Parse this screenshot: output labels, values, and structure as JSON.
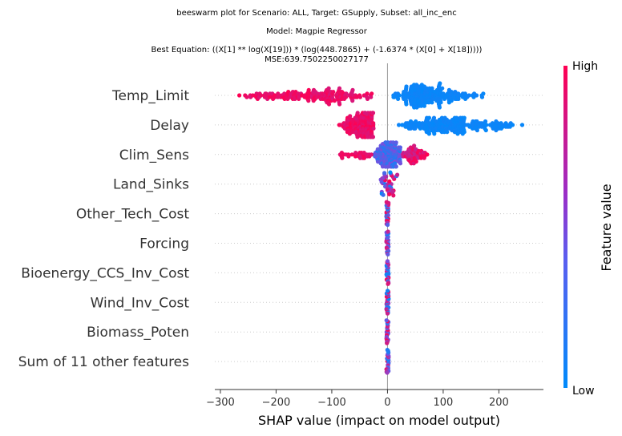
{
  "chart_data": {
    "type": "scatter",
    "subtype": "shap-beeswarm",
    "title_lines": [
      "beeswarm plot for Scenario: ALL, Target: GSupply, Subset: all_inc_enc",
      "Model: Magpie Regressor",
      "Best Equation: ((X[1] ** log(X[19])) * (log(448.7865) + (-1.6374 * (X[0] + X[18]))))",
      "MSE:639.7502250027177"
    ],
    "xlabel": "SHAP value (impact on model output)",
    "xlim": [
      -310,
      280
    ],
    "xticks": [
      -300,
      -200,
      -100,
      0,
      100,
      200
    ],
    "colorbar": {
      "label": "Feature value",
      "high": "High",
      "low": "Low",
      "high_color": "#ff0052",
      "low_color": "#008bfb"
    },
    "features": [
      {
        "name": "Temp_Limit",
        "pos": {
          "range": [
            5,
            180
          ],
          "mode": 40,
          "count": 220
        },
        "neg": {
          "range": [
            -280,
            -15
          ],
          "mode": -110,
          "count": 180
        }
      },
      {
        "name": "Delay",
        "pos": {
          "range": [
            15,
            255
          ],
          "mode": 80,
          "count": 230
        },
        "neg": {
          "range": [
            -90,
            -20
          ],
          "mode": -32,
          "count": 160
        }
      },
      {
        "name": "Clim_Sens",
        "mid": {
          "range": [
            -25,
            30
          ],
          "mode": 0,
          "count": 150
        },
        "neg": {
          "range": [
            -95,
            -25
          ],
          "mode": -40,
          "count": 30
        },
        "pos": {
          "range": [
            25,
            78
          ],
          "mode": 38,
          "count": 60
        }
      },
      {
        "name": "Land_Sinks",
        "spread": [
          -12,
          18
        ],
        "count": 40
      },
      {
        "name": "Other_Tech_Cost",
        "spread": [
          -2,
          2
        ],
        "count": 28
      },
      {
        "name": "Forcing",
        "spread": [
          -2,
          2
        ],
        "count": 28
      },
      {
        "name": "Bioenergy_CCS_Inv_Cost",
        "spread": [
          -2,
          2
        ],
        "count": 28
      },
      {
        "name": "Wind_Inv_Cost",
        "spread": [
          -2,
          2
        ],
        "count": 28
      },
      {
        "name": "Biomass_Poten",
        "spread": [
          -2,
          2
        ],
        "count": 28
      },
      {
        "name": "Sum of 11 other features",
        "spread": [
          -2,
          2
        ],
        "count": 28
      }
    ]
  }
}
